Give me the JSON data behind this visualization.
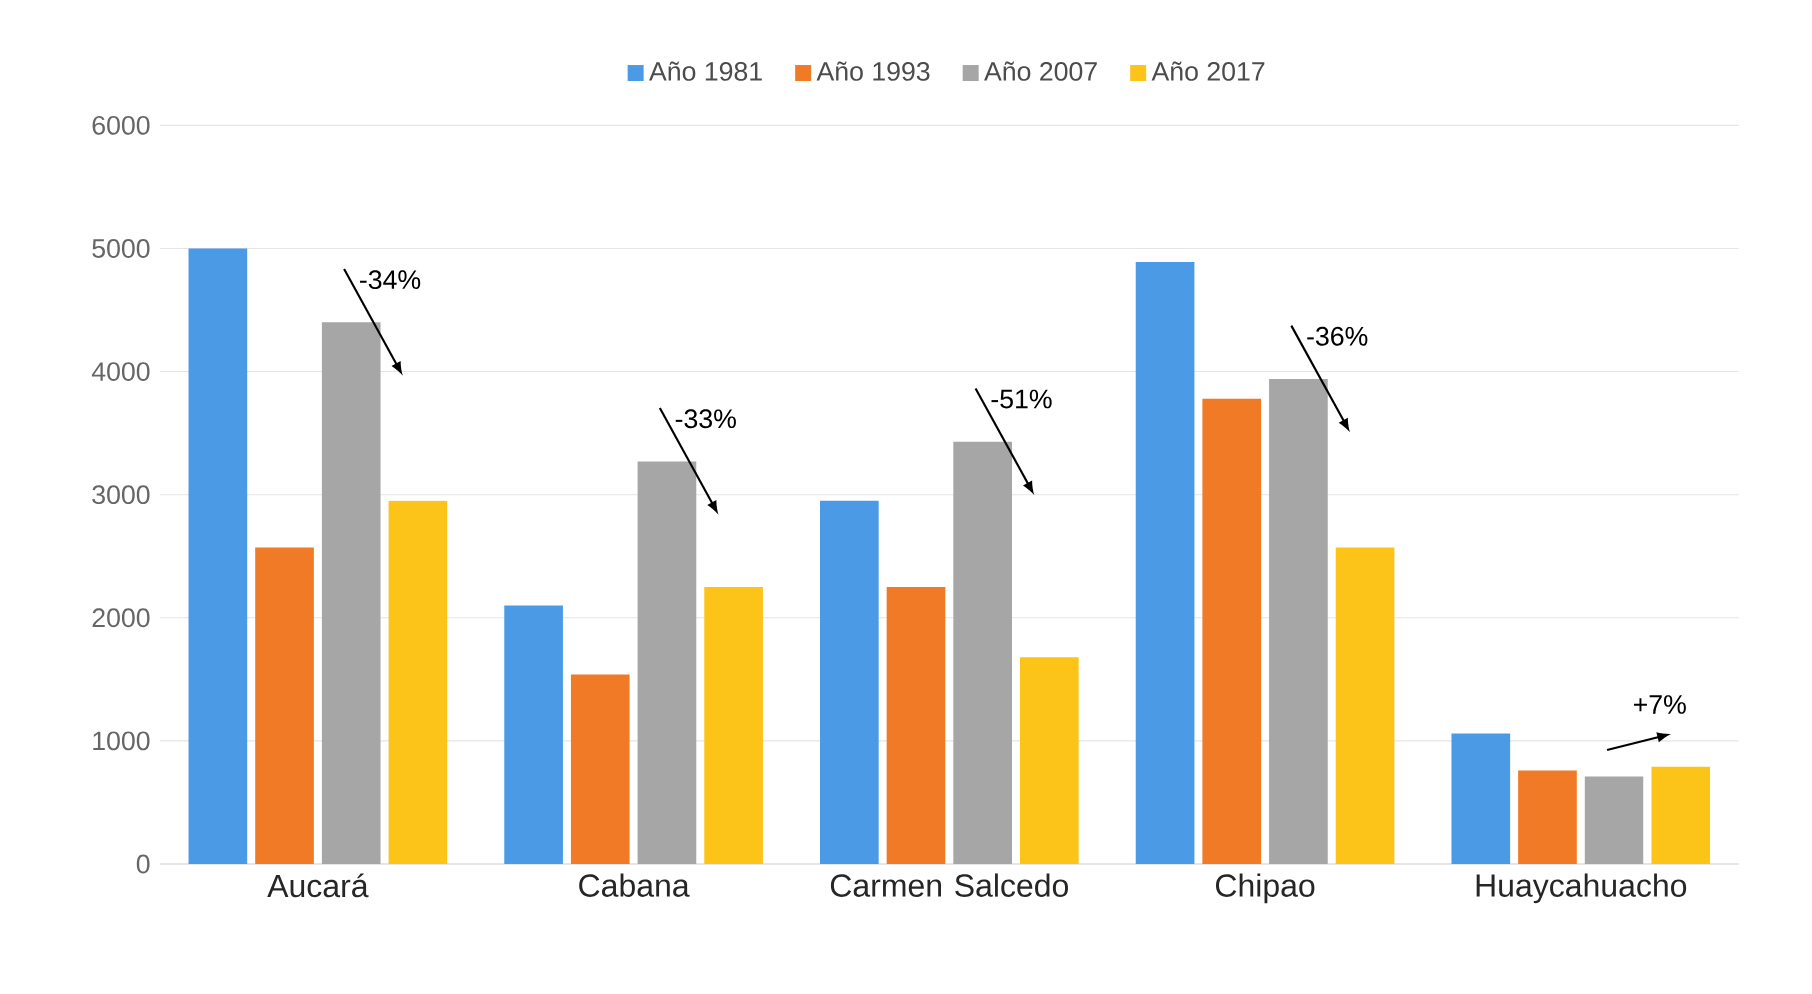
{
  "chart_data": {
    "type": "bar",
    "categories": [
      "Aucará",
      "Cabana",
      "Carmen Salcedo",
      "Chipao",
      "Huaycahuacho"
    ],
    "series": [
      {
        "name": "Año 1981",
        "color": "#4a9ae6",
        "values": [
          5000,
          2100,
          2950,
          4890,
          1060
        ]
      },
      {
        "name": "Año 1993",
        "color": "#f07a25",
        "values": [
          2570,
          1540,
          2250,
          3780,
          760
        ]
      },
      {
        "name": "Año 2007",
        "color": "#a6a6a6",
        "values": [
          4400,
          3270,
          3430,
          3940,
          710
        ]
      },
      {
        "name": "Año 2017",
        "color": "#fcc419",
        "values": [
          2950,
          2250,
          1680,
          2570,
          790
        ]
      }
    ],
    "ylim": [
      0,
      6000
    ],
    "yticks": [
      0,
      1000,
      2000,
      3000,
      4000,
      5000,
      6000
    ],
    "grid": "y",
    "legend": "top",
    "annotations": [
      "-34%",
      "-33%",
      "-51%",
      "-36%",
      "+7%"
    ]
  }
}
